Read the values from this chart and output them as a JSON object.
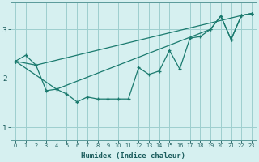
{
  "xlabel": "Humidex (Indice chaleur)",
  "background_color": "#d6f0f0",
  "line_color": "#1a7a6e",
  "grid_color": "#9ecece",
  "xlim": [
    -0.5,
    23.5
  ],
  "ylim": [
    0.75,
    3.55
  ],
  "yticks": [
    1,
    2,
    3
  ],
  "xticks": [
    0,
    1,
    2,
    3,
    4,
    5,
    6,
    7,
    8,
    9,
    10,
    11,
    12,
    13,
    14,
    15,
    16,
    17,
    18,
    19,
    20,
    21,
    22,
    23
  ],
  "series1": [
    2.35,
    2.47,
    2.27,
    1.75,
    1.78,
    1.68,
    1.52,
    1.62,
    1.58,
    1.58,
    1.58,
    1.58,
    2.22,
    2.08,
    2.15,
    2.57,
    2.19,
    2.82,
    2.85,
    3.0,
    3.27,
    2.79,
    3.28,
    3.32
  ],
  "series2_x": [
    0,
    2,
    22,
    23
  ],
  "series2_y": [
    2.35,
    2.27,
    3.28,
    3.32
  ],
  "series3_x": [
    0,
    4,
    19,
    20,
    21,
    22,
    23
  ],
  "series3_y": [
    2.35,
    1.78,
    3.0,
    3.27,
    2.79,
    3.28,
    3.32
  ],
  "figsize": [
    3.2,
    2.0
  ],
  "dpi": 100
}
